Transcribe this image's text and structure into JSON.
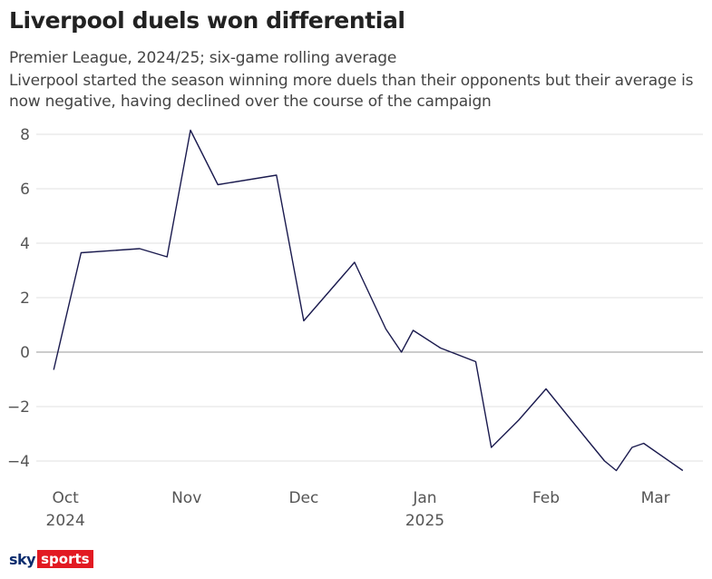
{
  "header": {
    "title": "Liverpool duels won differential",
    "subtitle": "Premier League, 2024/25; six-game rolling average",
    "description": "Liverpool started the season winning more duels than their opponents but their average is now negative, having declined over the course of the campaign"
  },
  "footer": {
    "logo_sky": "sky",
    "logo_sports": "sports"
  },
  "colors": {
    "line": "#1a1a4e",
    "grid": "#e0e0e0",
    "zero_line": "#999999",
    "brand_red": "#e21a22",
    "brand_navy": "#0b2c6e"
  },
  "chart_data": {
    "type": "line",
    "title": "Liverpool duels won differential",
    "xlabel": "",
    "ylabel": "",
    "ylim": [
      -4.5,
      8.5
    ],
    "yticks": [
      8,
      6,
      4,
      2,
      0,
      -2,
      -4
    ],
    "ytick_labels": [
      "8",
      "6",
      "4",
      "2",
      "0",
      "−2",
      "−4"
    ],
    "xlim": [
      "2024-09-24",
      "2025-03-12"
    ],
    "xticks": [
      {
        "date": "2024-10-01",
        "label": "Oct",
        "year": "2024"
      },
      {
        "date": "2024-11-01",
        "label": "Nov",
        "year": ""
      },
      {
        "date": "2024-12-01",
        "label": "Dec",
        "year": ""
      },
      {
        "date": "2025-01-01",
        "label": "Jan",
        "year": "2025"
      },
      {
        "date": "2025-02-01",
        "label": "Feb",
        "year": ""
      },
      {
        "date": "2025-03-01",
        "label": "Mar",
        "year": ""
      }
    ],
    "grid": true,
    "series": [
      {
        "name": "",
        "x": [
          "2024-09-28",
          "2024-10-05",
          "2024-10-20",
          "2024-10-27",
          "2024-11-02",
          "2024-11-09",
          "2024-11-24",
          "2024-12-01",
          "2024-12-14",
          "2024-12-22",
          "2024-12-26",
          "2024-12-29",
          "2025-01-05",
          "2025-01-14",
          "2025-01-18",
          "2025-01-25",
          "2025-02-01",
          "2025-02-12",
          "2025-02-16",
          "2025-02-19",
          "2025-02-23",
          "2025-02-26",
          "2025-03-08"
        ],
        "y": [
          -0.65,
          3.65,
          3.8,
          3.5,
          8.15,
          6.15,
          6.5,
          1.15,
          3.3,
          0.85,
          0.0,
          0.8,
          0.15,
          -0.35,
          -3.5,
          -2.5,
          -1.35,
          -3.3,
          -4.0,
          -4.35,
          -3.5,
          -3.35,
          -4.35
        ]
      }
    ]
  }
}
